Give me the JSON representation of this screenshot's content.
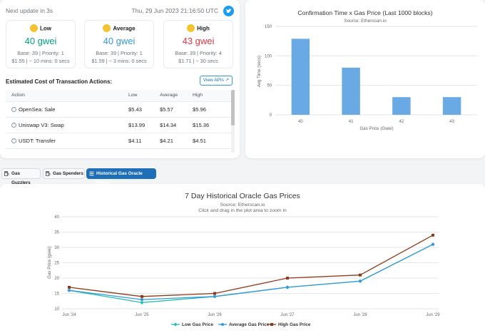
{
  "header": {
    "next_update": "Next update in 3s",
    "timestamp": "Thu, 29 Jun 2023 21:16:50 UTC"
  },
  "gas": [
    {
      "label": "Low",
      "value": "40 gwei",
      "base": "Base: 39 | Priority: 1",
      "cost": "$1.55 | ~ 10 mins: 0 secs",
      "color": "#00a186"
    },
    {
      "label": "Average",
      "value": "40 gwei",
      "base": "Base: 39 | Priority: 1",
      "cost": "$1.59 | ~ 3 mins: 0 secs",
      "color": "#3498db"
    },
    {
      "label": "High",
      "value": "43 gwei",
      "base": "Base: 39 | Priority: 4",
      "cost": "$1.71 | ~ 30 secs",
      "color": "#dc3545"
    }
  ],
  "estimates": {
    "title": "Estimated Cost of Transaction Actions:",
    "view_api": "View APIs",
    "columns": [
      "Action",
      "Low",
      "Average",
      "High"
    ],
    "rows": [
      {
        "action": "OpenSea: Sale",
        "low": "$5.43",
        "avg": "$5.57",
        "high": "$5.96"
      },
      {
        "action": "Uniswap V3: Swap",
        "low": "$13.99",
        "avg": "$14.34",
        "high": "$15.36"
      },
      {
        "action": "USDT: Transfer",
        "low": "$4.11",
        "avg": "$4.21",
        "high": "$4.51"
      }
    ]
  },
  "tabs": [
    {
      "label": "Gas Guzzlers",
      "active": false
    },
    {
      "label": "Gas Spenders",
      "active": false
    },
    {
      "label": "Historical Gas Oracle Prices",
      "active": true
    }
  ],
  "chart_data": [
    {
      "type": "bar",
      "title": "Confirmation Time x Gas Price (Last 1000 blocks)",
      "subtitle": "Source: Etherscan.io",
      "xlabel": "Gas Price (Gwei)",
      "ylabel": "Avg Time (secs)",
      "categories": [
        "40",
        "41",
        "42",
        "43"
      ],
      "values": [
        129,
        80,
        30,
        30
      ],
      "ylim": [
        0,
        150
      ],
      "yticks": [
        0,
        50,
        100,
        150
      ],
      "color": "#6aaae4"
    },
    {
      "type": "line",
      "title": "7 Day Historical Oracle Gas Prices",
      "subtitle": "Source: Etherscan.io",
      "subtitle2": "Click and drag in the plot area to zoom in",
      "ylabel": "Gas Price (gwei)",
      "categories": [
        "Jun '24",
        "Jun '25",
        "Jun '26",
        "Jun '27",
        "Jun '28",
        "Jun '29"
      ],
      "ylim": [
        10,
        40
      ],
      "yticks": [
        10,
        15,
        20,
        25,
        30,
        35,
        40
      ],
      "series": [
        {
          "name": "Low Gas Price",
          "values": [
            16,
            12,
            14,
            17,
            19,
            31
          ],
          "color": "#1fbdb0",
          "marker": "diamond"
        },
        {
          "name": "Average Gas Price",
          "values": [
            16,
            13,
            14,
            17,
            19,
            31
          ],
          "color": "#3498db",
          "marker": "circle"
        },
        {
          "name": "High Gas Price",
          "values": [
            17,
            14,
            15,
            20,
            21,
            34
          ],
          "color": "#8b3a1a",
          "marker": "square"
        }
      ]
    }
  ]
}
